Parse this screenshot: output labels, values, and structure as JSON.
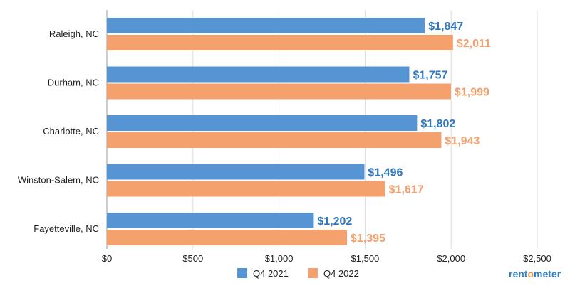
{
  "chart_data": {
    "type": "bar",
    "orientation": "horizontal",
    "categories": [
      "Raleigh, NC",
      "Durham, NC",
      "Charlotte, NC",
      "Winston-Salem, NC",
      "Fayetteville, NC"
    ],
    "series": [
      {
        "name": "Q4 2021",
        "color": "#5794d3",
        "label_color": "#2f77bf",
        "values": [
          1847,
          1757,
          1802,
          1496,
          1202
        ],
        "labels": [
          "$1,847",
          "$1,757",
          "$1,802",
          "$1,496",
          "$1,202"
        ]
      },
      {
        "name": "Q4 2022",
        "color": "#f4a16e",
        "label_color": "#f4a16e",
        "values": [
          2011,
          1999,
          1943,
          1617,
          1395
        ],
        "labels": [
          "$2,011",
          "$1,999",
          "$1,943",
          "$1,617",
          "$1,395"
        ]
      }
    ],
    "xlim": [
      0,
      2500
    ],
    "xticks": [
      0,
      500,
      1000,
      1500,
      2000,
      2500
    ],
    "xtick_labels": [
      "$0",
      "$500",
      "$1,000",
      "$1,500",
      "$2,000",
      "$2,500"
    ],
    "grid": true,
    "legend_position": "bottom",
    "title": "",
    "xlabel": "",
    "ylabel": ""
  },
  "logo": {
    "text_a": "rent",
    "text_o": "o",
    "text_b": "meter"
  }
}
